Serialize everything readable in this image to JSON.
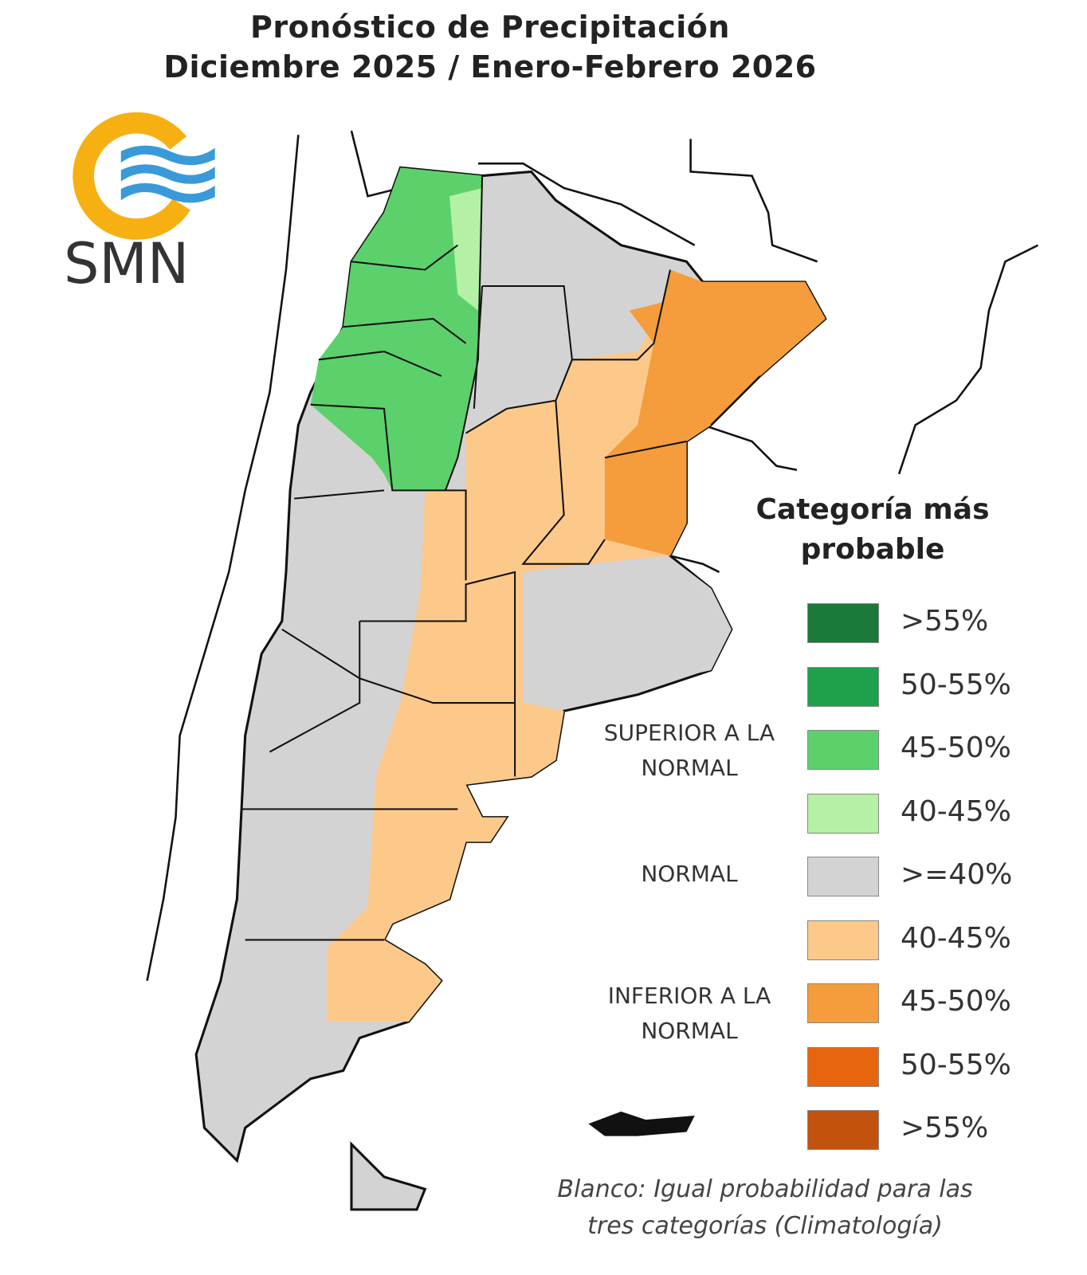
{
  "header": {
    "title": "Pronóstico de Precipitación",
    "subtitle": "Diciembre 2025 / Enero-Febrero 2026"
  },
  "logo": {
    "text": "SMN"
  },
  "legend": {
    "title": "Categoría más probable",
    "groups": [
      {
        "label": "SUPERIOR A LA NORMAL",
        "items": [
          {
            "label": ">55%",
            "color": "#1b7a3a"
          },
          {
            "label": "50-55%",
            "color": "#1fa04c"
          },
          {
            "label": "45-50%",
            "color": "#5cd16b"
          },
          {
            "label": "40-45%",
            "color": "#b4f0a6"
          }
        ]
      },
      {
        "label": "NORMAL",
        "items": [
          {
            "label": ">=40%",
            "color": "#d3d3d3"
          }
        ]
      },
      {
        "label": "INFERIOR A LA NORMAL",
        "items": [
          {
            "label": "40-45%",
            "color": "#fdc98a"
          },
          {
            "label": "45-50%",
            "color": "#f59c3c"
          },
          {
            "label": "50-55%",
            "color": "#e8650f"
          },
          {
            "label": ">55%",
            "color": "#c2520e"
          }
        ]
      }
    ]
  },
  "note": "Blanco: Igual probabilidad para las tres categorías (Climatología)"
}
